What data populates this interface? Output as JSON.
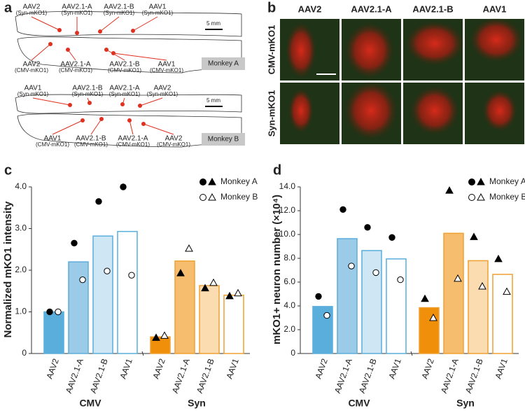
{
  "panels": {
    "a": {
      "label": "a",
      "monkeys": [
        {
          "name": "Monkey A",
          "scale": "5 mm",
          "top": [
            {
              "vector": "AAV2",
              "promoter": "(Syn-mKO1)"
            },
            {
              "vector": "AAV2.1-A",
              "promoter": "(Syn-mKO1)"
            },
            {
              "vector": "AAV2.1-B",
              "promoter": "(Syn-mKO1)"
            },
            {
              "vector": "AAV1",
              "promoter": "(Syn-mKO1)"
            }
          ],
          "bottom": [
            {
              "vector": "AAV2",
              "promoter": "(CMV-mKO1)"
            },
            {
              "vector": "AAV2.1-A",
              "promoter": "(CMV-mKO1)"
            },
            {
              "vector": "AAV2.1-B",
              "promoter": "(CMV-mKO1)"
            },
            {
              "vector": "AAV1",
              "promoter": "(CMV-mKO1)"
            }
          ]
        },
        {
          "name": "Monkey B",
          "scale": "5 mm",
          "top": [
            {
              "vector": "AAV1",
              "promoter": "(Syn-mKO1)"
            },
            {
              "vector": "AAV2.1-B",
              "promoter": "(Syn-mKO1)"
            },
            {
              "vector": "AAV2.1-A",
              "promoter": "(Syn-mKO1)"
            },
            {
              "vector": "AAV2",
              "promoter": "(Syn-mKO1)"
            }
          ],
          "bottom": [
            {
              "vector": "AAV1",
              "promoter": "(CMV-mKO1)"
            },
            {
              "vector": "AAV2.1-B",
              "promoter": "(CMV-mKO1)"
            },
            {
              "vector": "AAV2.1-A",
              "promoter": "(CMV-mKO1)"
            },
            {
              "vector": "AAV2",
              "promoter": "(CMV-mKO1)"
            }
          ]
        }
      ]
    },
    "b": {
      "label": "b",
      "columns": [
        "AAV2",
        "AAV2.1-A",
        "AAV2.1-B",
        "AAV1"
      ],
      "rows": [
        "CMV-mKO1",
        "Syn-mKO1"
      ]
    }
  },
  "chart_data": [
    {
      "type": "bar",
      "label": "c",
      "ylabel": "Normalized mKO1 intensity",
      "ylim": [
        0,
        4
      ],
      "yticks": [
        0,
        {
          "value": 1,
          "label": "1.0"
        },
        {
          "value": 2,
          "label": "2.0"
        },
        {
          "value": 3,
          "label": "3.0"
        },
        {
          "value": 4,
          "label": "4.0"
        }
      ],
      "groups": [
        {
          "name": "CMV",
          "categories": [
            "AAV2",
            "AAV2.1-A",
            "AAV2.1-B",
            "AAV1"
          ],
          "values": [
            1.0,
            2.2,
            2.82,
            2.93
          ],
          "colors": [
            "#5aaedc",
            "#9ccbe8",
            "#cfe6f5",
            "#ffffff"
          ],
          "edge_color": "#5aaedc"
        },
        {
          "name": "Syn",
          "categories": [
            "AAV2",
            "AAV2.1-A",
            "AAV2.1-B",
            "AAV1"
          ],
          "values": [
            0.4,
            2.22,
            1.63,
            1.4
          ],
          "colors": [
            "#f0900a",
            "#f5bd6d",
            "#fadcb0",
            "#ffffff"
          ],
          "edge_color": "#f0a030"
        }
      ],
      "series": [
        {
          "name": "Monkey A",
          "fill": "#000000",
          "values": [
            [
              1.0,
              2.65,
              3.65,
              4.0
            ],
            [
              0.38,
              1.93,
              1.57,
              1.38
            ]
          ]
        },
        {
          "name": "Monkey B",
          "fill": "#ffffff",
          "values": [
            [
              1.0,
              1.77,
              1.98,
              1.88
            ],
            [
              0.43,
              2.52,
              1.7,
              1.45
            ]
          ]
        }
      ]
    },
    {
      "type": "bar",
      "label": "d",
      "ylabel": "mKO1+ neuron number (×10⁴)",
      "ylim": [
        0,
        14
      ],
      "yticks": [
        0,
        {
          "value": 2,
          "label": "2.0"
        },
        {
          "value": 4,
          "label": "4.0"
        },
        {
          "value": 6,
          "label": "6.0"
        },
        {
          "value": 8,
          "label": "8.0"
        },
        {
          "value": 10,
          "label": "10.0"
        },
        {
          "value": 12,
          "label": "12.0"
        },
        {
          "value": 14,
          "label": "14.0"
        }
      ],
      "groups": [
        {
          "name": "CMV",
          "categories": [
            "AAV2",
            "AAV2.1-A",
            "AAV2.1-B",
            "AAV1"
          ],
          "values": [
            3.95,
            9.65,
            8.65,
            7.95
          ],
          "colors": [
            "#5aaedc",
            "#9ccbe8",
            "#cfe6f5",
            "#ffffff"
          ],
          "edge_color": "#5aaedc"
        },
        {
          "name": "Syn",
          "categories": [
            "AAV2",
            "AAV2.1-A",
            "AAV2.1-B",
            "AAV1"
          ],
          "values": [
            3.85,
            10.1,
            7.8,
            6.65
          ],
          "colors": [
            "#f0900a",
            "#f5bd6d",
            "#fadcb0",
            "#ffffff"
          ],
          "edge_color": "#f0a030"
        }
      ],
      "series": [
        {
          "name": "Monkey A",
          "fill": "#000000",
          "values": [
            [
              4.8,
              12.1,
              10.6,
              9.75
            ],
            [
              4.6,
              13.7,
              9.8,
              7.95
            ]
          ]
        },
        {
          "name": "Monkey B",
          "fill": "#ffffff",
          "values": [
            [
              3.2,
              7.35,
              6.8,
              6.2
            ],
            [
              3.0,
              6.3,
              5.65,
              5.2
            ]
          ]
        }
      ]
    }
  ]
}
